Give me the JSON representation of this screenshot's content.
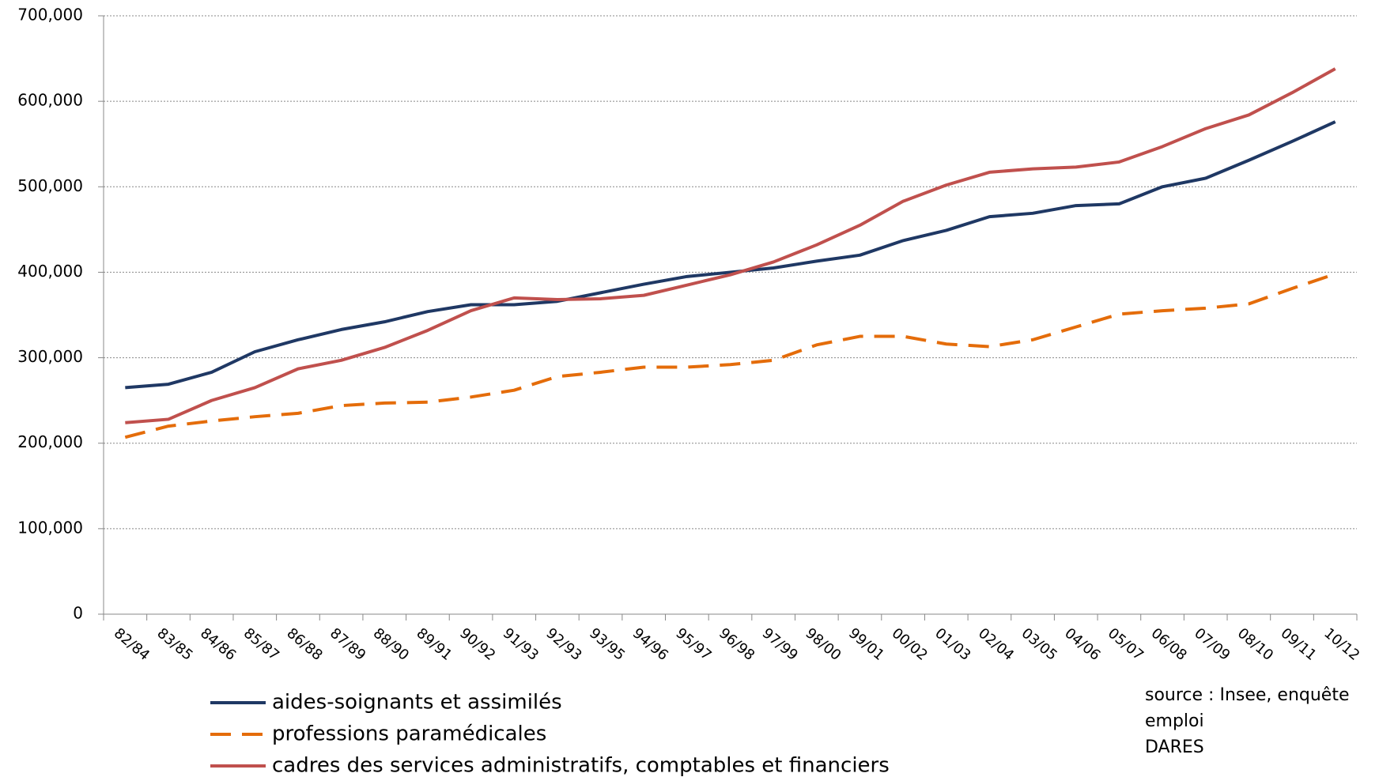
{
  "chart_data": {
    "type": "line",
    "categories": [
      "82/84",
      "83/85",
      "84/86",
      "85/87",
      "86/88",
      "87/89",
      "88/90",
      "89/91",
      "90/92",
      "91/93",
      "92/93",
      "93/95",
      "94/96",
      "95/97",
      "96/98",
      "97/99",
      "98/00",
      "99/01",
      "00/02",
      "01/03",
      "02/04",
      "03/05",
      "04/06",
      "05/07",
      "06/08",
      "07/09",
      "08/10",
      "09/11",
      "10/12"
    ],
    "series": [
      {
        "name": "aides-soignants et assimilés",
        "color": "#1f3864",
        "style": "solid",
        "values": [
          265000,
          269000,
          283000,
          307000,
          321000,
          333000,
          342000,
          354000,
          362000,
          362000,
          366000,
          376000,
          386000,
          395000,
          400000,
          405000,
          413000,
          420000,
          437000,
          449000,
          465000,
          469000,
          478000,
          480000,
          500000,
          510000,
          531000,
          553000,
          576000
        ]
      },
      {
        "name": "professions paramédicales",
        "color": "#e46c0a",
        "style": "dashed",
        "values": [
          207000,
          220000,
          226000,
          231000,
          235000,
          244000,
          247000,
          248000,
          254000,
          262000,
          278000,
          283000,
          289000,
          289000,
          292000,
          297000,
          315000,
          325000,
          325000,
          316000,
          313000,
          321000,
          336000,
          351000,
          355000,
          358000,
          363000,
          381000,
          398000
        ]
      },
      {
        "name": "cadres des services administratifs, comptables et financiers",
        "color": "#c0504d",
        "style": "solid",
        "values": [
          224000,
          228000,
          250000,
          265000,
          287000,
          297000,
          312000,
          332000,
          355000,
          370000,
          368000,
          369000,
          373000,
          385000,
          397000,
          412000,
          432000,
          455000,
          483000,
          502000,
          517000,
          521000,
          523000,
          529000,
          547000,
          568000,
          584000,
          610000,
          638000
        ]
      }
    ],
    "ylim": [
      0,
      700000
    ],
    "yticks": [
      0,
      {
        "value": 100000,
        "label": "100,000"
      },
      {
        "value": 200000,
        "label": "200,000"
      },
      {
        "value": 300000,
        "label": "300,000"
      },
      {
        "value": 400000,
        "label": "400,000"
      },
      {
        "value": 500000,
        "label": "500,000"
      },
      {
        "value": 600000,
        "label": "600,000"
      },
      {
        "value": 700000,
        "label": "700,000"
      }
    ],
    "grid": true,
    "legend": "bottom-left",
    "annotations": [
      "source : Insee, enquête",
      "emploi",
      "DARES"
    ]
  }
}
